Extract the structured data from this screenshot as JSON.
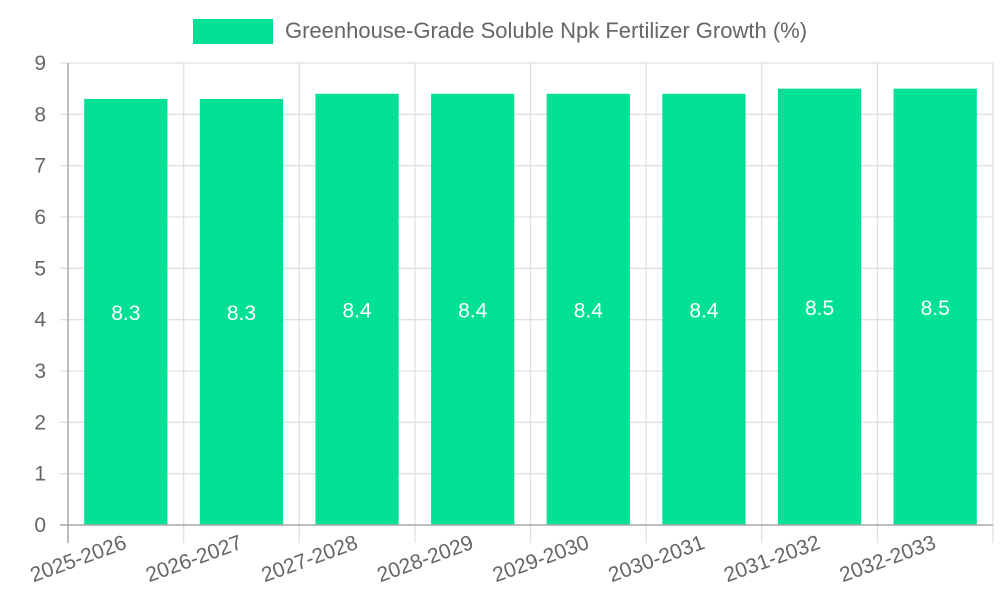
{
  "chart_data": {
    "type": "bar",
    "title": "",
    "legend": [
      {
        "label": "Greenhouse-Grade Soluble Npk Fertilizer Growth (%)",
        "color": "#00e096"
      }
    ],
    "categories": [
      "2025-2026",
      "2026-2027",
      "2027-2028",
      "2028-2029",
      "2029-2030",
      "2030-2031",
      "2031-2032",
      "2032-2033"
    ],
    "series": [
      {
        "name": "Greenhouse-Grade Soluble Npk Fertilizer Growth (%)",
        "values": [
          8.3,
          8.3,
          8.4,
          8.4,
          8.4,
          8.4,
          8.5,
          8.5
        ],
        "color": "#00e096"
      }
    ],
    "data_labels": [
      "8.3",
      "8.3",
      "8.4",
      "8.4",
      "8.4",
      "8.4",
      "8.5",
      "8.5"
    ],
    "xlabel": "",
    "ylabel": "",
    "ylim": [
      0,
      9
    ],
    "yticks": [
      0,
      1,
      2,
      3,
      4,
      5,
      6,
      7,
      8,
      9
    ],
    "grid": true,
    "legend_position": "top"
  },
  "legend": {
    "label": "Greenhouse-Grade Soluble Npk Fertilizer Growth (%)",
    "color": "#00e096"
  },
  "colors": {
    "bar": "#00e096",
    "grid": "#e0e0e0",
    "axis": "#aaaaaa",
    "tick_text": "#666666",
    "data_label": "#ffffff"
  }
}
